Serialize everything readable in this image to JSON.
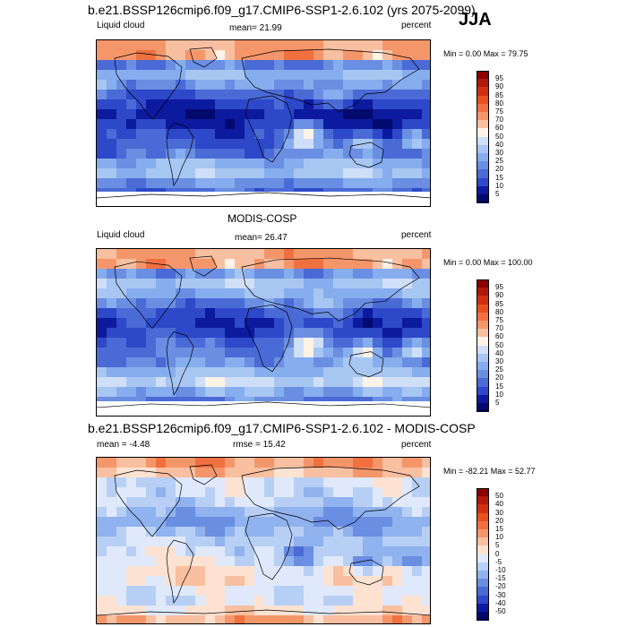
{
  "season": "JJA",
  "panels": [
    {
      "title": "b.e21.BSSP126cmip6.f09_g17.CMIP6-SSP1-2.6.102 (yrs 2075-2099)",
      "left_label": "Liquid cloud",
      "center_label": "mean=  21.99",
      "right_label": "percent",
      "minmax": "Min =   0.00 Max =  79.75"
    },
    {
      "title": "MODIS-COSP",
      "left_label": "Liquid cloud",
      "center_label": "mean=  26.47",
      "right_label": "percent",
      "minmax": "Min =   0.00 Max = 100.00"
    },
    {
      "title": "b.e21.BSSP126cmip6.f09_g17.CMIP6-SSP1-2.6.102 - MODIS-COSP",
      "left_label": "mean =  -4.48",
      "center_label": "rmse =  15.42",
      "right_label": "percent",
      "minmax": "Min = -82.21 Max =  52.77"
    }
  ],
  "chart_data": [
    {
      "type": "heatmap",
      "title": "b.e21.BSSP126cmip6.f09_g17.CMIP6-SSP1-2.6.102 (yrs 2075-2099)",
      "variable": "Liquid cloud",
      "units": "percent",
      "mean": 21.99,
      "min": 0.0,
      "max": 79.75,
      "colorbar_levels": [
        95,
        90,
        85,
        80,
        75,
        70,
        60,
        50,
        40,
        30,
        25,
        20,
        15,
        10,
        5
      ],
      "colorbar_colors": [
        "#8b0000",
        "#b01a0a",
        "#d03010",
        "#e8501e",
        "#f07040",
        "#f4966a",
        "#f8bfa0",
        "#fff2e6",
        "#d0dff8",
        "#a8c6f2",
        "#86adee",
        "#6a8ee2",
        "#4a6ad6",
        "#2d48c8",
        "#0c1aa0",
        "#020a6e"
      ],
      "colormap": "blue-white-red sequential"
    },
    {
      "type": "heatmap",
      "title": "MODIS-COSP",
      "variable": "Liquid cloud",
      "units": "percent",
      "mean": 26.47,
      "min": 0.0,
      "max": 100.0,
      "colorbar_levels": [
        95,
        90,
        85,
        80,
        75,
        70,
        60,
        50,
        40,
        30,
        25,
        20,
        15,
        10,
        5
      ],
      "colorbar_colors": [
        "#8b0000",
        "#b01a0a",
        "#d03010",
        "#e8501e",
        "#f07040",
        "#f4966a",
        "#f8bfa0",
        "#fff2e6",
        "#d0dff8",
        "#a8c6f2",
        "#86adee",
        "#6a8ee2",
        "#4a6ad6",
        "#2d48c8",
        "#0c1aa0",
        "#020a6e"
      ],
      "colormap": "blue-white-red sequential"
    },
    {
      "type": "heatmap",
      "title": "b.e21.BSSP126cmip6.f09_g17.CMIP6-SSP1-2.6.102 - MODIS-COSP",
      "variable": "",
      "units": "percent",
      "mean": -4.48,
      "rmse": 15.42,
      "min": -82.21,
      "max": 52.77,
      "colorbar_levels": [
        50,
        40,
        30,
        20,
        15,
        10,
        5,
        0,
        -5,
        -10,
        -15,
        -20,
        -30,
        -40,
        -50
      ],
      "colorbar_colors": [
        "#8b0000",
        "#b01a0a",
        "#d03010",
        "#e8501e",
        "#f07040",
        "#f4966a",
        "#f8bfa0",
        "#fde2d2",
        "#dfe9fb",
        "#b8cff5",
        "#90b2ee",
        "#6a8ee2",
        "#4a6ad6",
        "#2d48c8",
        "#0c1aa0",
        "#020a6e"
      ],
      "colormap": "blue-white-red diverging"
    }
  ]
}
